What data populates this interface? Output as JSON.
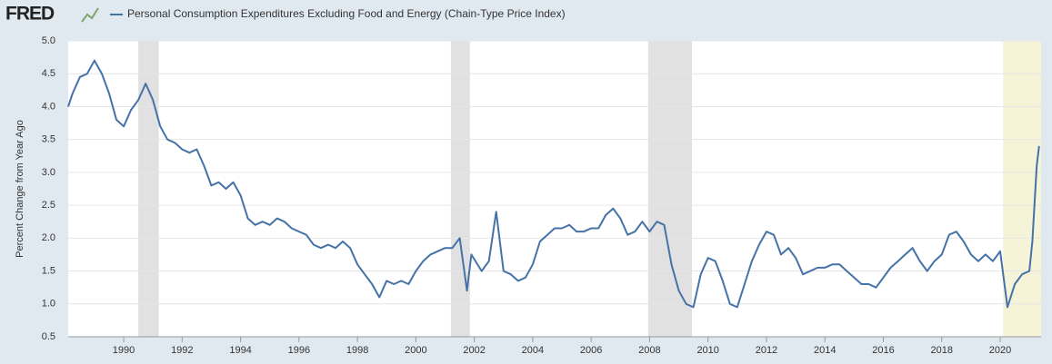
{
  "chart_data": {
    "type": "line",
    "brand": "FRED",
    "ylabel": "Percent Change from Year Ago",
    "series": [
      {
        "name": "Personal Consumption Expenditures Excluding Food and Energy (Chain-Type Price Index)",
        "color": "#4572a7",
        "x": [
          1988.1,
          1988.25,
          1988.5,
          1988.75,
          1989,
          1989.25,
          1989.5,
          1989.75,
          1990,
          1990.25,
          1990.5,
          1990.75,
          1991,
          1991.25,
          1991.5,
          1991.75,
          1992,
          1992.25,
          1992.5,
          1992.75,
          1993,
          1993.25,
          1993.5,
          1993.75,
          1994,
          1994.25,
          1994.5,
          1994.75,
          1995,
          1995.25,
          1995.5,
          1995.75,
          1996,
          1996.25,
          1996.5,
          1996.75,
          1997,
          1997.25,
          1997.5,
          1997.75,
          1998,
          1998.25,
          1998.5,
          1998.75,
          1999,
          1999.25,
          1999.5,
          1999.75,
          2000,
          2000.25,
          2000.5,
          2000.75,
          2001,
          2001.25,
          2001.5,
          2001.75,
          2001.9,
          2002.25,
          2002.5,
          2002.75,
          2003,
          2003.25,
          2003.5,
          2003.75,
          2004,
          2004.25,
          2004.5,
          2004.75,
          2005,
          2005.25,
          2005.5,
          2005.75,
          2006,
          2006.25,
          2006.5,
          2006.75,
          2007,
          2007.25,
          2007.5,
          2007.75,
          2008,
          2008.25,
          2008.5,
          2008.75,
          2009,
          2009.25,
          2009.5,
          2009.75,
          2010,
          2010.25,
          2010.5,
          2010.75,
          2011,
          2011.25,
          2011.5,
          2011.75,
          2012,
          2012.25,
          2012.5,
          2012.75,
          2013,
          2013.25,
          2013.5,
          2013.75,
          2014,
          2014.25,
          2014.5,
          2014.75,
          2015,
          2015.25,
          2015.5,
          2015.75,
          2016,
          2016.25,
          2016.5,
          2016.75,
          2017,
          2017.25,
          2017.5,
          2017.75,
          2018,
          2018.25,
          2018.5,
          2018.75,
          2019,
          2019.25,
          2019.5,
          2019.75,
          2020,
          2020.25,
          2020.5,
          2020.75,
          2021,
          2021.1,
          2021.25,
          2021.33
        ],
        "values": [
          4.0,
          4.2,
          4.45,
          4.5,
          4.7,
          4.5,
          4.2,
          3.8,
          3.7,
          3.95,
          4.1,
          4.35,
          4.1,
          3.7,
          3.5,
          3.45,
          3.35,
          3.3,
          3.35,
          3.1,
          2.8,
          2.85,
          2.75,
          2.85,
          2.65,
          2.3,
          2.2,
          2.25,
          2.2,
          2.3,
          2.25,
          2.15,
          2.1,
          2.05,
          1.9,
          1.85,
          1.9,
          1.85,
          1.95,
          1.85,
          1.6,
          1.45,
          1.3,
          1.1,
          1.35,
          1.3,
          1.35,
          1.3,
          1.5,
          1.65,
          1.75,
          1.8,
          1.85,
          1.85,
          2.0,
          1.2,
          1.75,
          1.5,
          1.65,
          2.4,
          1.5,
          1.45,
          1.35,
          1.4,
          1.6,
          1.95,
          2.05,
          2.15,
          2.15,
          2.2,
          2.1,
          2.1,
          2.15,
          2.15,
          2.35,
          2.45,
          2.3,
          2.05,
          2.1,
          2.25,
          2.1,
          2.25,
          2.2,
          1.6,
          1.2,
          1.0,
          0.95,
          1.45,
          1.7,
          1.65,
          1.35,
          1.0,
          0.95,
          1.3,
          1.65,
          1.9,
          2.1,
          2.05,
          1.75,
          1.85,
          1.7,
          1.45,
          1.5,
          1.55,
          1.55,
          1.6,
          1.6,
          1.5,
          1.4,
          1.3,
          1.3,
          1.25,
          1.4,
          1.55,
          1.65,
          1.75,
          1.85,
          1.65,
          1.5,
          1.65,
          1.75,
          2.05,
          2.1,
          1.95,
          1.75,
          1.65,
          1.75,
          1.65,
          1.8,
          0.95,
          1.3,
          1.45,
          1.5,
          1.95,
          3.1,
          3.4
        ]
      }
    ],
    "recessions": [
      [
        1990.5,
        1991.2
      ],
      [
        2001.2,
        2001.85
      ],
      [
        2007.95,
        2009.45
      ]
    ],
    "highlight": [
      2020.1,
      2021.4
    ],
    "xlim": [
      1988.1,
      2021.4
    ],
    "ylim": [
      0.5,
      5.0
    ],
    "xticks": [
      1990,
      1992,
      1994,
      1996,
      1998,
      2000,
      2002,
      2004,
      2006,
      2008,
      2010,
      2012,
      2014,
      2016,
      2018,
      2020
    ],
    "yticks": [
      {
        "value": 0.5,
        "label": "0.5"
      },
      {
        "value": 1,
        "label": "1.0"
      },
      {
        "value": 1.5,
        "label": "1.5"
      },
      {
        "value": 2,
        "label": "2.0"
      },
      {
        "value": 2.5,
        "label": "2.5"
      },
      {
        "value": 3,
        "label": "3.0"
      },
      {
        "value": 3.5,
        "label": "3.5"
      },
      {
        "value": 4,
        "label": "4.0"
      },
      {
        "value": 4.5,
        "label": "4.5"
      },
      {
        "value": 5,
        "label": "5.0"
      }
    ],
    "grid": true
  }
}
